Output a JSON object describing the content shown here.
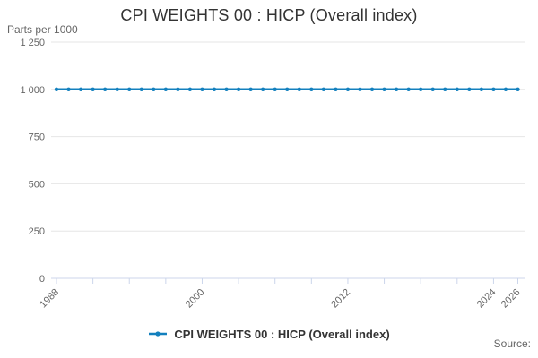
{
  "chart": {
    "title": "CPI WEIGHTS 00 : HICP (Overall index)",
    "y_axis_unit": "Parts per 1000",
    "legend_label": "CPI WEIGHTS 00 : HICP (Overall index)",
    "source_label": "Source:",
    "colors": {
      "line": "#1380be",
      "grid": "#e6e6e6",
      "axis": "#ccd6eb",
      "tick_text": "#666666",
      "title_text": "#333333"
    }
  },
  "chart_data": {
    "type": "line",
    "title": "CPI WEIGHTS 00 : HICP (Overall index)",
    "xlabel": "",
    "ylabel": "Parts per 1000",
    "ylim": [
      0,
      1250
    ],
    "yticks": [
      0,
      250,
      500,
      750,
      1000,
      1250
    ],
    "xticks": [
      1988,
      1991,
      1994,
      1997,
      2000,
      2003,
      2006,
      2009,
      2012,
      2015,
      2018,
      2021,
      2024,
      2026
    ],
    "labeled_xticks": [
      1988,
      2000,
      2012,
      2024,
      2026
    ],
    "grid": true,
    "legend_position": "bottom",
    "x": [
      1988,
      1989,
      1990,
      1991,
      1992,
      1993,
      1994,
      1995,
      1996,
      1997,
      1998,
      1999,
      2000,
      2001,
      2002,
      2003,
      2004,
      2005,
      2006,
      2007,
      2008,
      2009,
      2010,
      2011,
      2012,
      2013,
      2014,
      2015,
      2016,
      2017,
      2018,
      2019,
      2020,
      2021,
      2022,
      2023,
      2024,
      2025,
      2026
    ],
    "series": [
      {
        "name": "CPI WEIGHTS 00 : HICP (Overall index)",
        "values": [
          1000,
          1000,
          1000,
          1000,
          1000,
          1000,
          1000,
          1000,
          1000,
          1000,
          1000,
          1000,
          1000,
          1000,
          1000,
          1000,
          1000,
          1000,
          1000,
          1000,
          1000,
          1000,
          1000,
          1000,
          1000,
          1000,
          1000,
          1000,
          1000,
          1000,
          1000,
          1000,
          1000,
          1000,
          1000,
          1000,
          1000,
          1000,
          1000
        ]
      }
    ]
  }
}
